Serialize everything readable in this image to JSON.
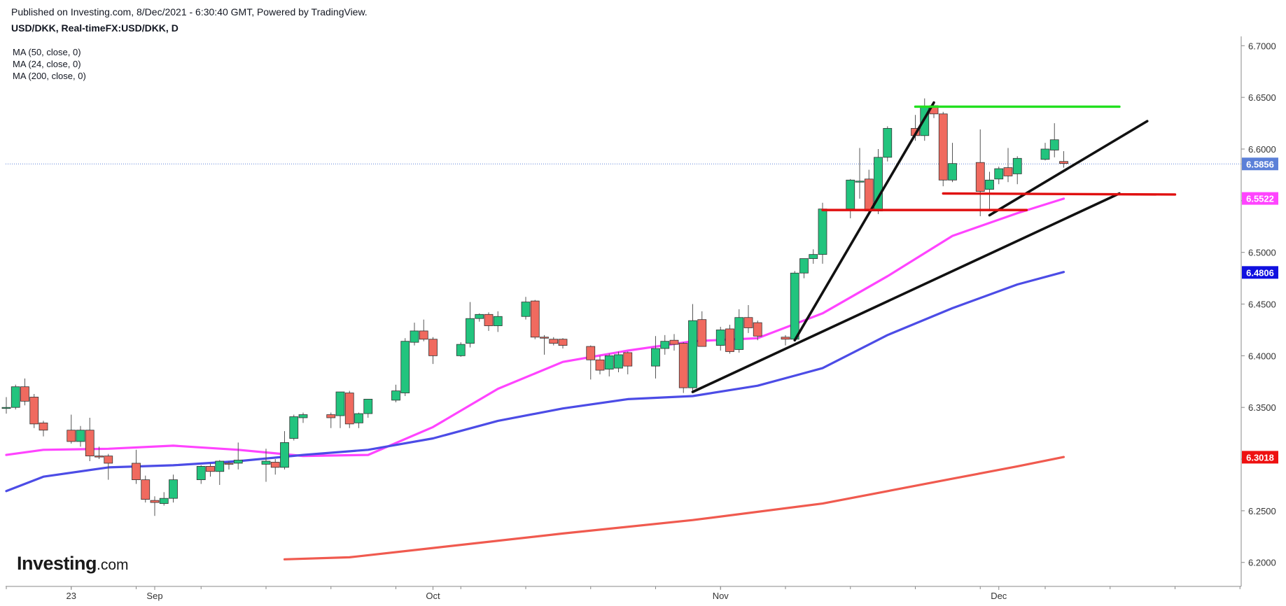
{
  "header": {
    "published": "Published on Investing.com, 8/Dec/2021 - 6:30:40 GMT, Powered by TradingView.",
    "symbol": "USD/DKK, Real-timeFX:USD/DKK, D"
  },
  "legend": {
    "ma50": "MA (50, close, 0)",
    "ma24": "MA (24, close, 0)",
    "ma200": "MA (200, close, 0)"
  },
  "logo": {
    "main": "Investing",
    "suffix": ".com"
  },
  "colors": {
    "up": "#22c47e",
    "down": "#f06a5f",
    "ma24": "#ff44ff",
    "ma50": "#4c4ce6",
    "ma200": "#f05a4f",
    "last": "#5b80d8",
    "green_line": "#22e01f",
    "red_line": "#e01010",
    "trend": "#111111"
  },
  "chart_data": {
    "type": "candlestick",
    "y_axis": {
      "min": 6.1768,
      "max": 6.7036,
      "ticks": [
        "6.7000",
        "6.6500",
        "6.6000",
        "6.5500",
        "6.5000",
        "6.4500",
        "6.4000",
        "6.3500",
        "6.3000",
        "6.2500",
        "6.2000"
      ]
    },
    "x_labels": [
      {
        "label": "23",
        "date": "2021-08-23"
      },
      {
        "label": "Sep",
        "date": "2021-09-01"
      },
      {
        "label": "Oct",
        "date": "2021-10-01"
      },
      {
        "label": "Nov",
        "date": "2021-11-01"
      },
      {
        "label": "Dec",
        "date": "2021-12-01"
      }
    ],
    "price_labels": [
      {
        "text": "6.5856",
        "value": 6.5856,
        "color": "#5b80d8"
      },
      {
        "text": "6.5522",
        "value": 6.5522,
        "color": "#ff44ff"
      },
      {
        "text": "6.4806",
        "value": 6.4806,
        "color": "#1010e0"
      },
      {
        "text": "6.3018",
        "value": 6.3018,
        "color": "#ee1111"
      }
    ],
    "last_price": 6.5856,
    "candles": [
      [
        "2021-08-16",
        6.35,
        6.36,
        6.344,
        6.35
      ],
      [
        "2021-08-17",
        6.35,
        6.372,
        6.348,
        6.37
      ],
      [
        "2021-08-18",
        6.37,
        6.378,
        6.352,
        6.356
      ],
      [
        "2021-08-19",
        6.36,
        6.363,
        6.33,
        6.334
      ],
      [
        "2021-08-20",
        6.335,
        6.337,
        6.322,
        6.328
      ],
      [
        "2021-08-23",
        6.328,
        6.343,
        6.315,
        6.317
      ],
      [
        "2021-08-24",
        6.317,
        6.332,
        6.312,
        6.328
      ],
      [
        "2021-08-25",
        6.328,
        6.34,
        6.298,
        6.303
      ],
      [
        "2021-08-26",
        6.303,
        6.312,
        6.3,
        6.302
      ],
      [
        "2021-08-27",
        6.303,
        6.305,
        6.28,
        6.296
      ],
      [
        "2021-08-30",
        6.296,
        6.309,
        6.276,
        6.28
      ],
      [
        "2021-08-31",
        6.28,
        6.284,
        6.258,
        6.261
      ],
      [
        "2021-09-01",
        6.26,
        6.264,
        6.245,
        6.258
      ],
      [
        "2021-09-02",
        6.257,
        6.268,
        6.255,
        6.262
      ],
      [
        "2021-09-03",
        6.262,
        6.285,
        6.258,
        6.28
      ],
      [
        "2021-09-06",
        6.28,
        6.294,
        6.276,
        6.293
      ],
      [
        "2021-09-07",
        6.293,
        6.296,
        6.283,
        6.288
      ],
      [
        "2021-09-08",
        6.288,
        6.299,
        6.275,
        6.298
      ],
      [
        "2021-09-09",
        6.296,
        6.298,
        6.29,
        6.295
      ],
      [
        "2021-09-10",
        6.296,
        6.316,
        6.29,
        6.299
      ],
      [
        "2021-09-13",
        6.295,
        6.31,
        6.278,
        6.298
      ],
      [
        "2021-09-14",
        6.297,
        6.3,
        6.285,
        6.292
      ],
      [
        "2021-09-15",
        6.292,
        6.327,
        6.29,
        6.316
      ],
      [
        "2021-09-16",
        6.32,
        6.343,
        6.318,
        6.341
      ],
      [
        "2021-09-17",
        6.34,
        6.345,
        6.335,
        6.343
      ],
      [
        "2021-09-20",
        6.343,
        6.345,
        6.33,
        6.34
      ],
      [
        "2021-09-21",
        6.342,
        6.363,
        6.33,
        6.365
      ],
      [
        "2021-09-22",
        6.364,
        6.366,
        6.33,
        6.334
      ],
      [
        "2021-09-23",
        6.335,
        6.345,
        6.33,
        6.344
      ],
      [
        "2021-09-24",
        6.344,
        6.355,
        6.34,
        6.358
      ],
      [
        "2021-09-27",
        6.357,
        6.372,
        6.355,
        6.366
      ],
      [
        "2021-09-28",
        6.364,
        6.417,
        6.361,
        6.414
      ],
      [
        "2021-09-29",
        6.413,
        6.432,
        6.41,
        6.424
      ],
      [
        "2021-09-30",
        6.424,
        6.435,
        6.414,
        6.416
      ],
      [
        "2021-10-01",
        6.416,
        6.418,
        6.392,
        6.4
      ],
      [
        "2021-10-04",
        6.4,
        6.413,
        6.399,
        6.411
      ],
      [
        "2021-10-05",
        6.412,
        6.452,
        6.408,
        6.436
      ],
      [
        "2021-10-06",
        6.436,
        6.441,
        6.433,
        6.44
      ],
      [
        "2021-10-07",
        6.44,
        6.442,
        6.424,
        6.429
      ],
      [
        "2021-10-08",
        6.429,
        6.443,
        6.423,
        6.438
      ],
      [
        "2021-10-11",
        6.438,
        6.457,
        6.435,
        6.452
      ],
      [
        "2021-10-12",
        6.453,
        6.454,
        6.416,
        6.418
      ],
      [
        "2021-10-13",
        6.418,
        6.42,
        6.401,
        6.417
      ],
      [
        "2021-10-14",
        6.416,
        6.418,
        6.41,
        6.412
      ],
      [
        "2021-10-15",
        6.416,
        6.417,
        6.407,
        6.41
      ],
      [
        "2021-10-18",
        6.409,
        6.41,
        6.377,
        6.396
      ],
      [
        "2021-10-19",
        6.396,
        6.4,
        6.382,
        6.386
      ],
      [
        "2021-10-20",
        6.387,
        6.402,
        6.38,
        6.4
      ],
      [
        "2021-10-21",
        6.388,
        6.404,
        6.384,
        6.401
      ],
      [
        "2021-10-22",
        6.403,
        6.404,
        6.382,
        6.39
      ],
      [
        "2021-10-25",
        6.39,
        6.419,
        6.378,
        6.407
      ],
      [
        "2021-10-26",
        6.407,
        6.42,
        6.401,
        6.414
      ],
      [
        "2021-10-27",
        6.415,
        6.421,
        6.405,
        6.411
      ],
      [
        "2021-10-28",
        6.412,
        6.413,
        6.364,
        6.369
      ],
      [
        "2021-10-29",
        6.369,
        6.45,
        6.365,
        6.434
      ],
      [
        "2021-10-30",
        6.435,
        6.443,
        6.409,
        6.409
      ],
      [
        "2021-11-01",
        6.41,
        6.428,
        6.405,
        6.425
      ],
      [
        "2021-11-02",
        6.426,
        6.43,
        6.402,
        6.404
      ],
      [
        "2021-11-03",
        6.406,
        6.445,
        6.403,
        6.437
      ],
      [
        "2021-11-04",
        6.437,
        6.449,
        6.422,
        6.427
      ],
      [
        "2021-11-05",
        6.432,
        6.434,
        6.415,
        6.419
      ],
      [
        "2021-11-08",
        6.418,
        6.42,
        6.41,
        6.416
      ],
      [
        "2021-11-09",
        6.416,
        6.482,
        6.414,
        6.48
      ],
      [
        "2021-11-10",
        6.48,
        6.494,
        6.475,
        6.494
      ],
      [
        "2021-11-11",
        6.494,
        6.503,
        6.489,
        6.498
      ],
      [
        "2021-11-12",
        6.498,
        6.548,
        6.489,
        6.542
      ],
      [
        "2021-11-15",
        6.542,
        6.571,
        6.533,
        6.57
      ],
      [
        "2021-11-16",
        6.569,
        6.601,
        6.552,
        6.569
      ],
      [
        "2021-11-17",
        6.571,
        6.58,
        6.536,
        6.54
      ],
      [
        "2021-11-18",
        6.54,
        6.6,
        6.537,
        6.592
      ],
      [
        "2021-11-19",
        6.592,
        6.622,
        6.588,
        6.62
      ],
      [
        "2021-11-22",
        6.62,
        6.633,
        6.608,
        6.613
      ],
      [
        "2021-11-23",
        6.613,
        6.649,
        6.608,
        6.641
      ],
      [
        "2021-11-24",
        6.642,
        6.641,
        6.63,
        6.634
      ],
      [
        "2021-11-25",
        6.634,
        6.636,
        6.564,
        6.57
      ],
      [
        "2021-11-26",
        6.57,
        6.606,
        6.568,
        6.586
      ],
      [
        "2021-11-29",
        6.587,
        6.619,
        6.535,
        6.559
      ],
      [
        "2021-11-30",
        6.561,
        6.578,
        6.542,
        6.57
      ],
      [
        "2021-12-01",
        6.571,
        6.583,
        6.566,
        6.581
      ],
      [
        "2021-12-02",
        6.582,
        6.601,
        6.568,
        6.574
      ],
      [
        "2021-12-03",
        6.576,
        6.593,
        6.566,
        6.591
      ],
      [
        "2021-12-06",
        6.59,
        6.606,
        6.589,
        6.6
      ],
      [
        "2021-12-07",
        6.599,
        6.625,
        6.592,
        6.609
      ],
      [
        "2021-12-08",
        6.588,
        6.598,
        6.582,
        6.586
      ]
    ],
    "moving_averages": [
      {
        "name": "MA (24, close, 0)",
        "color": "#ff44ff",
        "points": [
          [
            "2021-08-16",
            6.304
          ],
          [
            "2021-08-20",
            6.309
          ],
          [
            "2021-08-27",
            6.31
          ],
          [
            "2021-09-03",
            6.313
          ],
          [
            "2021-09-10",
            6.309
          ],
          [
            "2021-09-17",
            6.303
          ],
          [
            "2021-09-24",
            6.304
          ],
          [
            "2021-10-01",
            6.331
          ],
          [
            "2021-10-08",
            6.368
          ],
          [
            "2021-10-15",
            6.394
          ],
          [
            "2021-10-22",
            6.405
          ],
          [
            "2021-10-29",
            6.414
          ],
          [
            "2021-11-05",
            6.417
          ],
          [
            "2021-11-12",
            6.441
          ],
          [
            "2021-11-19",
            6.477
          ],
          [
            "2021-11-26",
            6.516
          ],
          [
            "2021-12-03",
            6.538
          ],
          [
            "2021-12-08",
            6.552
          ]
        ]
      },
      {
        "name": "MA (50, close, 0)",
        "color": "#4c4ce6",
        "points": [
          [
            "2021-08-16",
            6.269
          ],
          [
            "2021-08-20",
            6.283
          ],
          [
            "2021-08-27",
            6.292
          ],
          [
            "2021-09-03",
            6.294
          ],
          [
            "2021-09-10",
            6.298
          ],
          [
            "2021-09-17",
            6.304
          ],
          [
            "2021-09-24",
            6.309
          ],
          [
            "2021-10-01",
            6.32
          ],
          [
            "2021-10-08",
            6.337
          ],
          [
            "2021-10-15",
            6.349
          ],
          [
            "2021-10-22",
            6.358
          ],
          [
            "2021-10-29",
            6.361
          ],
          [
            "2021-11-05",
            6.371
          ],
          [
            "2021-11-12",
            6.388
          ],
          [
            "2021-11-19",
            6.42
          ],
          [
            "2021-11-26",
            6.446
          ],
          [
            "2021-12-03",
            6.469
          ],
          [
            "2021-12-08",
            6.481
          ]
        ]
      },
      {
        "name": "MA (200, close, 0)",
        "color": "#f05a4f",
        "points": [
          [
            "2021-09-15",
            6.203
          ],
          [
            "2021-09-22",
            6.205
          ],
          [
            "2021-10-01",
            6.214
          ],
          [
            "2021-10-15",
            6.228
          ],
          [
            "2021-10-29",
            6.241
          ],
          [
            "2021-11-12",
            6.257
          ],
          [
            "2021-11-26",
            6.281
          ],
          [
            "2021-12-03",
            6.293
          ],
          [
            "2021-12-08",
            6.302
          ]
        ]
      }
    ],
    "drawings": [
      {
        "kind": "trendline",
        "color": "#111111",
        "from": [
          "2021-10-29",
          6.365
        ],
        "to": [
          "2021-12-14",
          6.557
        ]
      },
      {
        "kind": "trendline",
        "color": "#111111",
        "from": [
          "2021-11-09",
          6.415
        ],
        "to": [
          "2021-11-24",
          6.645
        ]
      },
      {
        "kind": "trendline",
        "color": "#111111",
        "from": [
          "2021-11-30",
          6.536
        ],
        "to": [
          "2021-12-17",
          6.627
        ]
      },
      {
        "kind": "hline",
        "color": "#22e01f",
        "from": [
          "2021-11-22",
          6.641
        ],
        "to": [
          "2021-12-14",
          6.641
        ]
      },
      {
        "kind": "hline",
        "color": "#e01010",
        "from": [
          "2021-11-12",
          6.541
        ],
        "to": [
          "2021-12-04",
          6.541
        ]
      },
      {
        "kind": "hline",
        "color": "#e01010",
        "from": [
          "2021-11-25",
          6.557
        ],
        "to": [
          "2021-12-20",
          6.556
        ]
      }
    ]
  }
}
